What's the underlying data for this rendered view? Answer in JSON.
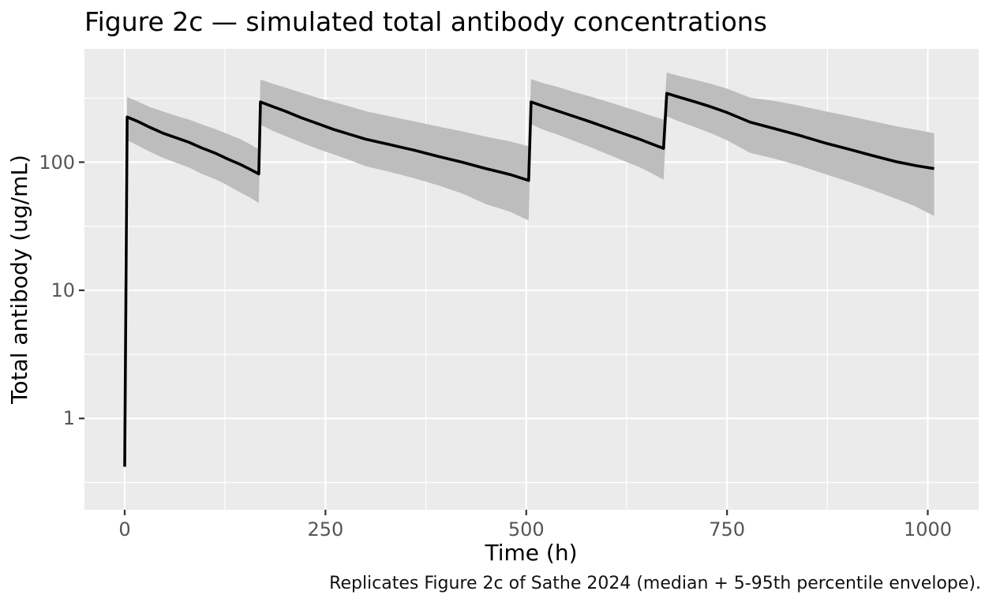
{
  "figure": {
    "title": "Figure 2c — simulated total antibody concentrations",
    "caption": "Replicates Figure 2c of Sathe 2024 (median + 5-95th percentile envelope)."
  },
  "chart_data": {
    "type": "line",
    "title": "Figure 2c — simulated total antibody concentrations",
    "xlabel": "Time (h)",
    "ylabel": "Total antibody (ug/mL)",
    "caption": "Replicates Figure 2c of Sathe 2024 (median + 5-95th percentile envelope).",
    "yscale": "log10",
    "grid": true,
    "legend": "none",
    "xlim": [
      -50,
      1063
    ],
    "ylim": [
      0.19,
      765
    ],
    "x_ticks": {
      "major": [
        0,
        250,
        500,
        750,
        1000
      ],
      "labels": [
        "0",
        "250",
        "500",
        "750",
        "1000"
      ],
      "minor": [
        125,
        375,
        625,
        875
      ]
    },
    "y_ticks": {
      "major": [
        1,
        10,
        100
      ],
      "labels": [
        "1",
        "10",
        "100"
      ],
      "minor": [
        0.3162,
        3.1623,
        31.623,
        316.23
      ]
    },
    "envelope_label": "5-95th percentile envelope",
    "series": {
      "time_h": [
        0,
        3,
        16,
        32,
        48,
        64,
        80,
        96,
        112,
        128,
        144,
        156,
        167,
        169,
        184,
        200,
        220,
        240,
        260,
        280,
        300,
        330,
        360,
        390,
        420,
        450,
        480,
        503,
        506,
        520,
        540,
        560,
        580,
        600,
        620,
        640,
        656,
        671,
        675,
        690,
        710,
        730,
        750,
        779,
        810,
        840,
        874,
        900,
        930,
        960,
        985,
        1008
      ],
      "median": [
        0.42,
        225,
        208,
        186,
        168,
        155,
        143,
        129,
        118,
        106,
        96,
        88,
        81,
        295,
        272,
        250,
        222,
        200,
        180,
        165,
        151,
        137,
        124,
        111,
        100,
        89,
        80,
        72,
        295,
        275,
        250,
        227,
        206,
        186,
        168,
        152,
        139,
        128,
        344,
        322,
        296,
        270,
        244,
        205,
        182,
        162,
        140,
        127,
        113,
        101,
        94,
        89
      ],
      "p5": [
        0.3,
        148,
        135,
        120,
        108,
        99,
        91,
        81,
        74,
        66,
        58,
        53,
        48,
        196,
        176,
        160,
        142,
        127,
        115,
        104,
        93,
        84,
        75,
        66,
        57,
        47,
        41,
        35,
        198,
        180,
        163,
        146,
        131,
        116,
        103,
        92,
        82,
        73,
        228,
        208,
        188,
        168,
        148,
        118,
        106,
        94,
        80,
        71,
        61,
        52,
        45,
        38
      ],
      "p95": [
        0.62,
        322,
        298,
        268,
        248,
        230,
        215,
        197,
        182,
        166,
        151,
        138,
        126,
        442,
        410,
        382,
        348,
        318,
        295,
        272,
        250,
        228,
        208,
        190,
        174,
        158,
        145,
        133,
        445,
        415,
        385,
        352,
        325,
        298,
        272,
        248,
        230,
        215,
        500,
        472,
        440,
        408,
        375,
        318,
        300,
        276,
        248,
        230,
        210,
        191,
        179,
        168
      ]
    },
    "colors": {
      "panel_bg": "#EBEBEB",
      "grid": "#FFFFFF",
      "ribbon": "#BDBDBD",
      "median_line": "#000000",
      "tick_mark": "#333333",
      "tick_label": "#555555",
      "axis_text": "#000000"
    }
  }
}
